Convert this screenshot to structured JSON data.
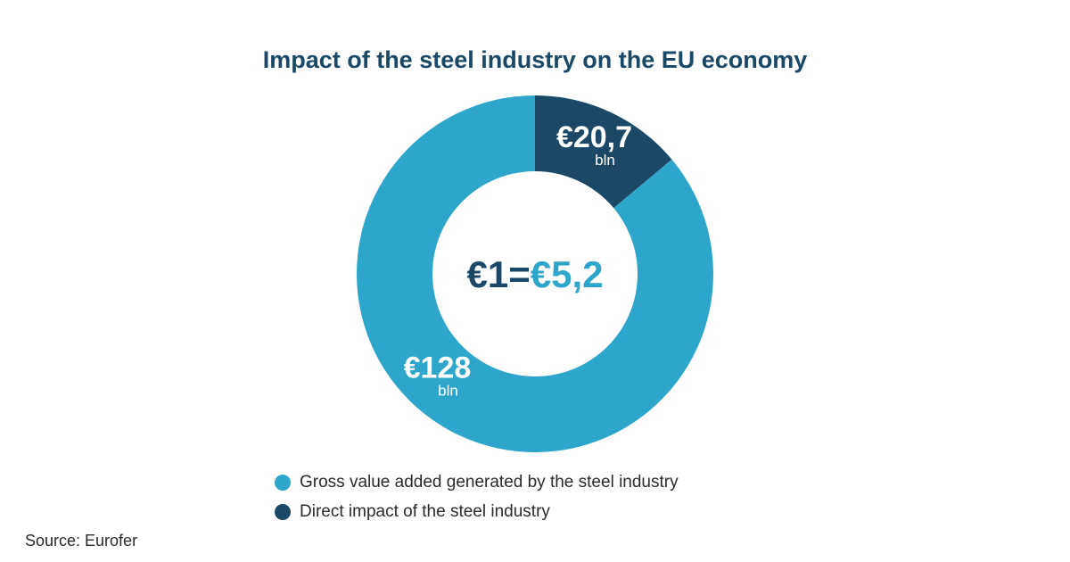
{
  "title": "Impact of the steel industry on the EU economy",
  "source": "Source: Eurofer",
  "chart_data": {
    "type": "pie",
    "title": "Impact of the steel industry on the EU economy",
    "center_text": {
      "left": "€1=",
      "right": "€5,2"
    },
    "slices": [
      {
        "name": "Gross value added generated by the steel industry",
        "value": 128,
        "label": "€128",
        "unit": "bln",
        "color": "#2ea6cc"
      },
      {
        "name": "Direct impact of the steel industry",
        "value": 20.7,
        "label": "€20,7",
        "unit": "bln",
        "color": "#1a4866"
      }
    ],
    "legend_position": "bottom"
  }
}
